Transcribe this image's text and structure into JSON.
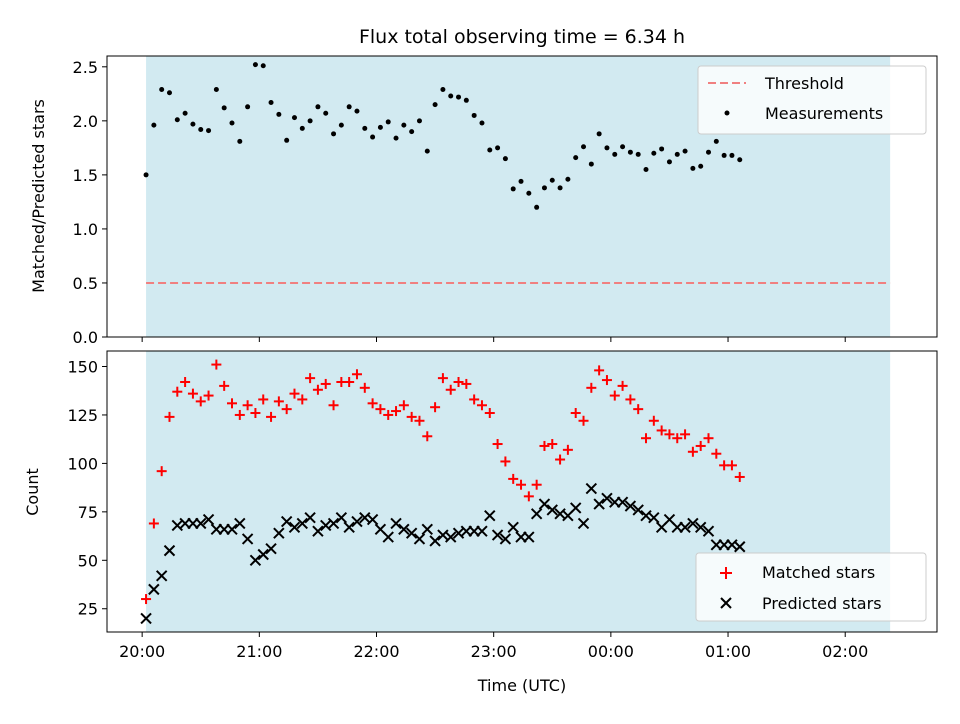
{
  "chart_data": [
    {
      "type": "scatter",
      "title": "Flux total observing time = 6.34 h",
      "ylabel": "Matched/Predicted stars",
      "ylim": [
        0,
        2.6
      ],
      "yticks": [
        "0.0",
        "0.5",
        "1.0",
        "1.5",
        "2.0",
        "2.5"
      ],
      "xlim": [
        "19:42",
        "02:47"
      ],
      "shaded_span": [
        "20:02",
        "02:23"
      ],
      "shade_color": "#add8e6",
      "threshold": {
        "name": "Threshold",
        "value": 0.5,
        "color": "#f08080"
      },
      "legend": {
        "placement": "top-right",
        "entries": [
          "Threshold",
          "Measurements"
        ]
      },
      "series": [
        {
          "name": "Measurements",
          "color": "#000000",
          "marker": "dot",
          "points": [
            [
              "20:02",
              1.5
            ],
            [
              "20:06",
              1.96
            ],
            [
              "20:10",
              2.29
            ],
            [
              "20:14",
              2.26
            ],
            [
              "20:18",
              2.01
            ],
            [
              "20:22",
              2.07
            ],
            [
              "20:26",
              1.97
            ],
            [
              "20:30",
              1.92
            ],
            [
              "20:34",
              1.91
            ],
            [
              "20:38",
              2.29
            ],
            [
              "20:42",
              2.12
            ],
            [
              "20:46",
              1.98
            ],
            [
              "20:50",
              1.81
            ],
            [
              "20:54",
              2.13
            ],
            [
              "20:58",
              2.52
            ],
            [
              "21:02",
              2.51
            ],
            [
              "21:06",
              2.17
            ],
            [
              "21:10",
              2.06
            ],
            [
              "21:14",
              1.82
            ],
            [
              "21:18",
              2.03
            ],
            [
              "21:22",
              1.93
            ],
            [
              "21:26",
              2.0
            ],
            [
              "21:30",
              2.13
            ],
            [
              "21:34",
              2.07
            ],
            [
              "21:38",
              1.88
            ],
            [
              "21:42",
              1.96
            ],
            [
              "21:46",
              2.13
            ],
            [
              "21:50",
              2.09
            ],
            [
              "21:54",
              1.93
            ],
            [
              "21:58",
              1.85
            ],
            [
              "22:02",
              1.94
            ],
            [
              "22:06",
              1.99
            ],
            [
              "22:10",
              1.84
            ],
            [
              "22:14",
              1.96
            ],
            [
              "22:18",
              1.9
            ],
            [
              "22:22",
              2.0
            ],
            [
              "22:26",
              1.72
            ],
            [
              "22:30",
              2.15
            ],
            [
              "22:34",
              2.29
            ],
            [
              "22:38",
              2.23
            ],
            [
              "22:42",
              2.22
            ],
            [
              "22:46",
              2.19
            ],
            [
              "22:50",
              2.05
            ],
            [
              "22:54",
              1.98
            ],
            [
              "22:58",
              1.73
            ],
            [
              "23:02",
              1.75
            ],
            [
              "23:06",
              1.65
            ],
            [
              "23:10",
              1.37
            ],
            [
              "23:14",
              1.44
            ],
            [
              "23:18",
              1.33
            ],
            [
              "23:22",
              1.2
            ],
            [
              "23:26",
              1.38
            ],
            [
              "23:30",
              1.45
            ],
            [
              "23:34",
              1.38
            ],
            [
              "23:38",
              1.46
            ],
            [
              "23:42",
              1.66
            ],
            [
              "23:46",
              1.76
            ],
            [
              "23:50",
              1.6
            ],
            [
              "23:54",
              1.88
            ],
            [
              "23:58",
              1.75
            ],
            [
              "00:02",
              1.69
            ],
            [
              "00:06",
              1.76
            ],
            [
              "00:10",
              1.71
            ],
            [
              "00:14",
              1.69
            ],
            [
              "00:18",
              1.55
            ],
            [
              "00:22",
              1.7
            ],
            [
              "00:26",
              1.74
            ],
            [
              "00:30",
              1.62
            ],
            [
              "00:34",
              1.69
            ],
            [
              "00:38",
              1.72
            ],
            [
              "00:42",
              1.56
            ],
            [
              "00:46",
              1.58
            ],
            [
              "00:50",
              1.71
            ],
            [
              "00:54",
              1.81
            ],
            [
              "00:58",
              1.68
            ],
            [
              "01:02",
              1.68
            ],
            [
              "01:06",
              1.64
            ]
          ]
        }
      ]
    },
    {
      "type": "scatter",
      "xlabel": "Time (UTC)",
      "ylabel": "Count",
      "ylim": [
        13,
        158
      ],
      "yticks": [
        "25",
        "50",
        "75",
        "100",
        "125",
        "150"
      ],
      "xlim": [
        "19:42",
        "02:47"
      ],
      "xticks": [
        "20:00",
        "21:00",
        "22:00",
        "23:00",
        "00:00",
        "01:00",
        "02:00"
      ],
      "shaded_span": [
        "20:02",
        "02:23"
      ],
      "shade_color": "#add8e6",
      "legend": {
        "placement": "bottom-right",
        "entries": [
          "Matched stars",
          "Predicted stars"
        ]
      },
      "series": [
        {
          "name": "Matched stars",
          "color": "#ff0000",
          "marker": "plus",
          "points": [
            [
              "20:02",
              30
            ],
            [
              "20:06",
              69
            ],
            [
              "20:10",
              96
            ],
            [
              "20:14",
              124
            ],
            [
              "20:18",
              137
            ],
            [
              "20:22",
              142
            ],
            [
              "20:26",
              136
            ],
            [
              "20:30",
              132
            ],
            [
              "20:34",
              135
            ],
            [
              "20:38",
              151
            ],
            [
              "20:42",
              140
            ],
            [
              "20:46",
              131
            ],
            [
              "20:50",
              125
            ],
            [
              "20:54",
              130
            ],
            [
              "20:58",
              126
            ],
            [
              "21:02",
              133
            ],
            [
              "21:06",
              124
            ],
            [
              "21:10",
              132
            ],
            [
              "21:14",
              128
            ],
            [
              "21:18",
              136
            ],
            [
              "21:22",
              133
            ],
            [
              "21:26",
              144
            ],
            [
              "21:30",
              138
            ],
            [
              "21:34",
              141
            ],
            [
              "21:38",
              130
            ],
            [
              "21:42",
              142
            ],
            [
              "21:46",
              142
            ],
            [
              "21:50",
              146
            ],
            [
              "21:54",
              139
            ],
            [
              "21:58",
              131
            ],
            [
              "22:02",
              128
            ],
            [
              "22:06",
              125
            ],
            [
              "22:10",
              127
            ],
            [
              "22:14",
              130
            ],
            [
              "22:18",
              124
            ],
            [
              "22:22",
              122
            ],
            [
              "22:26",
              114
            ],
            [
              "22:30",
              129
            ],
            [
              "22:34",
              144
            ],
            [
              "22:38",
              138
            ],
            [
              "22:42",
              142
            ],
            [
              "22:46",
              141
            ],
            [
              "22:50",
              133
            ],
            [
              "22:54",
              130
            ],
            [
              "22:58",
              126
            ],
            [
              "23:02",
              110
            ],
            [
              "23:06",
              101
            ],
            [
              "23:10",
              92
            ],
            [
              "23:14",
              89
            ],
            [
              "23:18",
              83
            ],
            [
              "23:22",
              89
            ],
            [
              "23:26",
              109
            ],
            [
              "23:30",
              110
            ],
            [
              "23:34",
              102
            ],
            [
              "23:38",
              107
            ],
            [
              "23:42",
              126
            ],
            [
              "23:46",
              122
            ],
            [
              "23:50",
              139
            ],
            [
              "23:54",
              148
            ],
            [
              "23:58",
              143
            ],
            [
              "00:02",
              135
            ],
            [
              "00:06",
              140
            ],
            [
              "00:10",
              133
            ],
            [
              "00:14",
              128
            ],
            [
              "00:18",
              113
            ],
            [
              "00:22",
              122
            ],
            [
              "00:26",
              117
            ],
            [
              "00:30",
              115
            ],
            [
              "00:34",
              113
            ],
            [
              "00:38",
              115
            ],
            [
              "00:42",
              106
            ],
            [
              "00:46",
              109
            ],
            [
              "00:50",
              113
            ],
            [
              "00:54",
              105
            ],
            [
              "00:58",
              99
            ],
            [
              "01:02",
              99
            ],
            [
              "01:06",
              93
            ]
          ]
        },
        {
          "name": "Predicted stars",
          "color": "#000000",
          "marker": "x",
          "points": [
            [
              "20:02",
              20
            ],
            [
              "20:06",
              35
            ],
            [
              "20:10",
              42
            ],
            [
              "20:14",
              55
            ],
            [
              "20:18",
              68
            ],
            [
              "20:22",
              69
            ],
            [
              "20:26",
              69
            ],
            [
              "20:30",
              69
            ],
            [
              "20:34",
              71
            ],
            [
              "20:38",
              66
            ],
            [
              "20:42",
              66
            ],
            [
              "20:46",
              66
            ],
            [
              "20:50",
              69
            ],
            [
              "20:54",
              61
            ],
            [
              "20:58",
              50
            ],
            [
              "21:02",
              53
            ],
            [
              "21:06",
              56
            ],
            [
              "21:10",
              64
            ],
            [
              "21:14",
              70
            ],
            [
              "21:18",
              67
            ],
            [
              "21:22",
              69
            ],
            [
              "21:26",
              72
            ],
            [
              "21:30",
              65
            ],
            [
              "21:34",
              68
            ],
            [
              "21:38",
              69
            ],
            [
              "21:42",
              72
            ],
            [
              "21:46",
              67
            ],
            [
              "21:50",
              70
            ],
            [
              "21:54",
              72
            ],
            [
              "21:58",
              71
            ],
            [
              "22:02",
              66
            ],
            [
              "22:06",
              62
            ],
            [
              "22:10",
              69
            ],
            [
              "22:14",
              66
            ],
            [
              "22:18",
              64
            ],
            [
              "22:22",
              61
            ],
            [
              "22:26",
              66
            ],
            [
              "22:30",
              60
            ],
            [
              "22:34",
              63
            ],
            [
              "22:38",
              62
            ],
            [
              "22:42",
              64
            ],
            [
              "22:46",
              65
            ],
            [
              "22:50",
              65
            ],
            [
              "22:54",
              65
            ],
            [
              "22:58",
              73
            ],
            [
              "23:02",
              63
            ],
            [
              "23:06",
              61
            ],
            [
              "23:10",
              67
            ],
            [
              "23:14",
              62
            ],
            [
              "23:18",
              62
            ],
            [
              "23:22",
              74
            ],
            [
              "23:26",
              79
            ],
            [
              "23:30",
              76
            ],
            [
              "23:34",
              74
            ],
            [
              "23:38",
              73
            ],
            [
              "23:42",
              77
            ],
            [
              "23:46",
              69
            ],
            [
              "23:50",
              87
            ],
            [
              "23:54",
              79
            ],
            [
              "23:58",
              82
            ],
            [
              "00:02",
              80
            ],
            [
              "00:06",
              80
            ],
            [
              "00:10",
              78
            ],
            [
              "00:14",
              76
            ],
            [
              "00:18",
              73
            ],
            [
              "00:22",
              72
            ],
            [
              "00:26",
              67
            ],
            [
              "00:30",
              71
            ],
            [
              "00:34",
              67
            ],
            [
              "00:38",
              67
            ],
            [
              "00:42",
              69
            ],
            [
              "00:46",
              67
            ],
            [
              "00:50",
              65
            ],
            [
              "00:54",
              58
            ],
            [
              "00:58",
              58
            ],
            [
              "01:02",
              58
            ],
            [
              "01:06",
              57
            ]
          ]
        }
      ]
    }
  ]
}
